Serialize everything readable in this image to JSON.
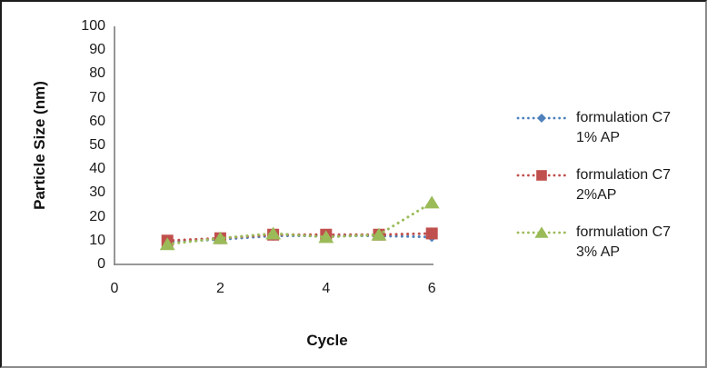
{
  "window": {
    "background": "#FFFFFF"
  },
  "colors": {
    "axis": "#8A8A8A",
    "text": "#1A1A1A",
    "frame_top_left": "#1C1C1C",
    "frame_bottom_right": "#8A8A8A"
  },
  "chart_data": {
    "type": "line",
    "title": "",
    "xlabel": "Cycle",
    "ylabel": "Particle Size (nm)",
    "x": [
      1,
      2,
      3,
      4,
      5,
      6
    ],
    "xlim": [
      0,
      6
    ],
    "ylim": [
      0,
      100
    ],
    "x_ticks": [
      0,
      2,
      4,
      6
    ],
    "y_ticks": [
      0,
      10,
      20,
      30,
      40,
      50,
      60,
      70,
      80,
      90,
      100
    ],
    "grid": false,
    "line_style": "dotted",
    "legend_position": "right",
    "series": [
      {
        "name": "formulation C7 1% AP",
        "label_lines": [
          "formulation C7",
          "1% AP"
        ],
        "marker": "diamond",
        "color": "#4F81BD",
        "values": [
          9.5,
          10.5,
          12,
          12,
          12,
          11.5
        ]
      },
      {
        "name": "formulation C7 2%AP",
        "label_lines": [
          "formulation C7",
          "2%AP"
        ],
        "marker": "square",
        "color": "#C0504D",
        "values": [
          10,
          11,
          12.5,
          12.5,
          12.5,
          13
        ]
      },
      {
        "name": "formulation C7 3% AP",
        "label_lines": [
          "formulation C7",
          "3% AP"
        ],
        "marker": "triangle",
        "color": "#9BBB59",
        "values": [
          8.5,
          11,
          13,
          11.5,
          12.5,
          26
        ]
      }
    ]
  }
}
